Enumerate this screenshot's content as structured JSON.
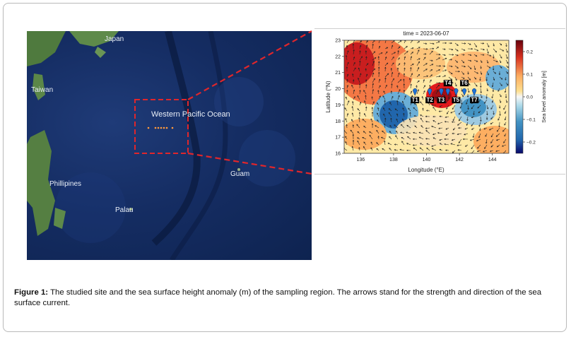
{
  "map": {
    "labels": {
      "japan": "Japan",
      "taiwan": "Taiwan",
      "philippines": "Phillipines",
      "palau": "Palau",
      "guam": "Guam",
      "ocean": "Western Pacific Ocean"
    },
    "colors": {
      "ocean": "#152d63",
      "land": "#5e8a4a",
      "highlight": "#e0262b"
    }
  },
  "sla_panel": {
    "title": "time = 2023-06-07",
    "colorbar_label": "Sea level anomaly [m]",
    "colorbar_ticks": [
      "0.2",
      "0.1",
      "0.0",
      "−0.1",
      "−0.2"
    ],
    "stations": [
      "T1",
      "T2",
      "T3",
      "T4",
      "T5",
      "T6",
      "T7"
    ]
  },
  "chart_data": {
    "type": "heatmap",
    "title": "time = 2023-06-07",
    "xlabel": "Longitude (°E)",
    "ylabel": "Latitude (°N)",
    "xlim": [
      135,
      145
    ],
    "ylim": [
      16,
      23
    ],
    "x_ticks": [
      "136",
      "138",
      "140",
      "142",
      "144"
    ],
    "y_ticks": [
      "16",
      "17",
      "18",
      "19",
      "20",
      "21",
      "22",
      "23"
    ],
    "colorbar": {
      "label": "Sea level anomaly [m]",
      "range": [
        -0.25,
        0.25
      ],
      "ticks": [
        0.2,
        0.1,
        0.0,
        -0.1,
        -0.2
      ]
    },
    "stations": [
      {
        "name": "T1",
        "lon": 139.3,
        "lat": 19.8
      },
      {
        "name": "T2",
        "lon": 140.2,
        "lat": 19.8
      },
      {
        "name": "T3",
        "lon": 140.9,
        "lat": 19.8
      },
      {
        "name": "T4",
        "lon": 141.3,
        "lat": 19.8
      },
      {
        "name": "T5",
        "lon": 141.8,
        "lat": 19.8
      },
      {
        "name": "T6",
        "lon": 142.3,
        "lat": 19.8
      },
      {
        "name": "T7",
        "lon": 142.9,
        "lat": 19.8
      }
    ]
  },
  "caption": {
    "label": "Figure 1:",
    "text": " The studied site and the sea surface height anomaly (m) of the sampling region. The arrows stand for the strength and direction of the sea surface current."
  }
}
